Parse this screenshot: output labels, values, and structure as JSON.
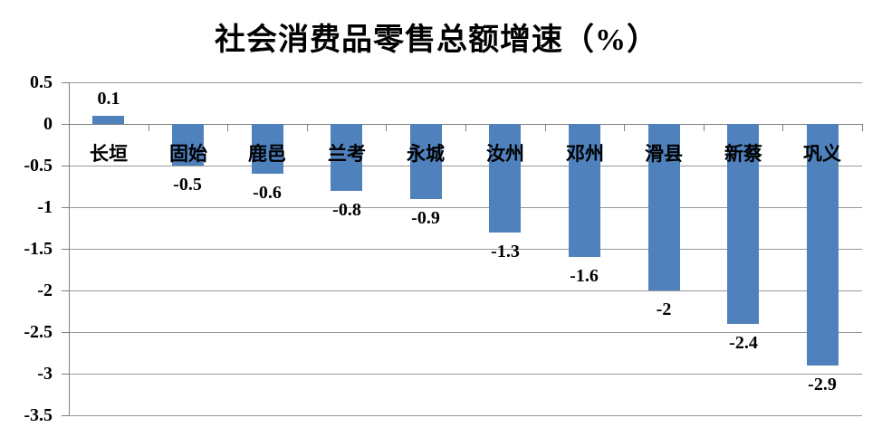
{
  "chart_data": {
    "type": "bar",
    "title": "社会消费品零售总额增速（%）",
    "categories": [
      "长垣",
      "固始",
      "鹿邑",
      "兰考",
      "永城",
      "汝州",
      "邓州",
      "滑县",
      "新蔡",
      "巩义"
    ],
    "values": [
      0.1,
      -0.5,
      -0.6,
      -0.8,
      -0.9,
      -1.3,
      -1.6,
      -2,
      -2.4,
      -2.9
    ],
    "value_labels": [
      "0.1",
      "-0.5",
      "-0.6",
      "-0.8",
      "-0.9",
      "-1.3",
      "-1.6",
      "-2",
      "-2.4",
      "-2.9"
    ],
    "xlabel": "",
    "ylabel": "",
    "ylim": [
      -3.5,
      0.5
    ],
    "ytick_step": 0.5,
    "ytick_labels": [
      "0.5",
      "0",
      "-0.5",
      "-1",
      "-1.5",
      "-2",
      "-2.5",
      "-3",
      "-3.5"
    ],
    "grid": true,
    "legend_position": "none",
    "series_name": ""
  },
  "colors": {
    "bar": "#4F81BD",
    "gridline": "#989898",
    "axis": "#808080",
    "text": "#000000",
    "background": "#FFFFFF"
  }
}
